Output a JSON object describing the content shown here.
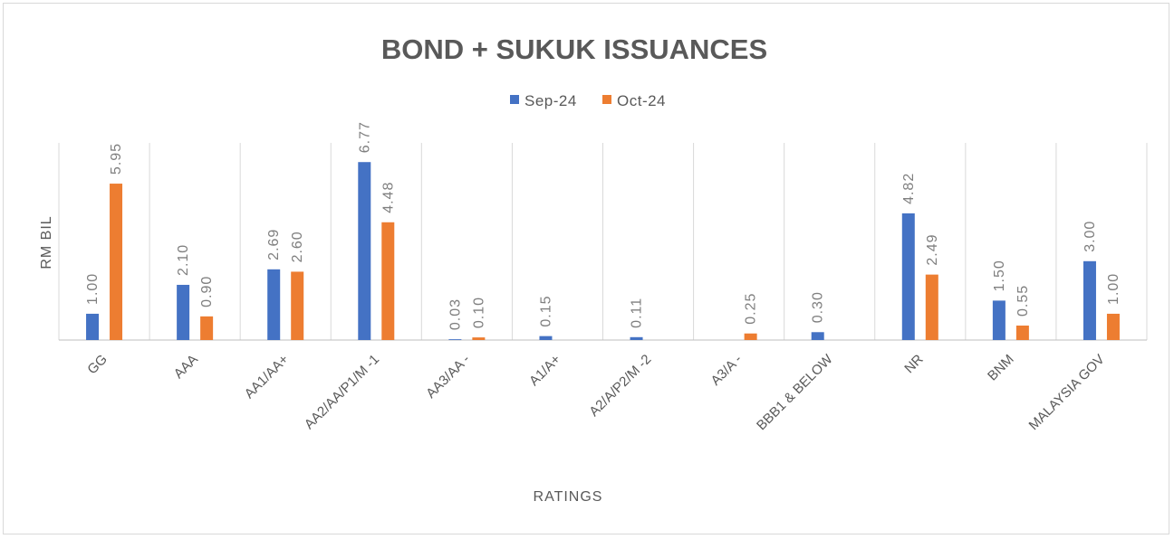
{
  "chart_data": {
    "type": "bar",
    "title": "BOND + SUKUK ISSUANCES",
    "xlabel": "RATINGS",
    "ylabel": "RM BIL",
    "categories": [
      "GG",
      "AAA",
      "AA1/AA+",
      "AA2/AA/P1/M -1",
      "AA3/AA -",
      "A1/A+",
      "A2/A/P2/M -2",
      "A3/A -",
      "BBB1 & BELOW",
      "NR",
      "BNM",
      "MALAYSIA GOV"
    ],
    "series": [
      {
        "name": "Sep-24",
        "color": "#4472c4",
        "values": [
          1.0,
          2.1,
          2.69,
          6.77,
          0.03,
          0.15,
          0.11,
          0,
          0.3,
          4.82,
          1.5,
          3.0
        ],
        "labels": [
          "1.00",
          "2.10",
          "2.69",
          "6.77",
          "0.03",
          "0.15",
          "0.11",
          "",
          "0.30",
          "4.82",
          "1.50",
          "3.00"
        ]
      },
      {
        "name": "Oct-24",
        "color": "#ed7d31",
        "values": [
          5.95,
          0.9,
          2.6,
          4.48,
          0.1,
          0,
          0,
          0.25,
          0,
          2.49,
          0.55,
          1.0
        ],
        "labels": [
          "5.95",
          "0.90",
          "2.60",
          "4.48",
          "0.10",
          "",
          "",
          "0.25",
          "",
          "2.49",
          "0.55",
          "1.00"
        ]
      }
    ],
    "ylim": [
      0,
      7.5
    ],
    "grid": "vertical",
    "legend": "top-center"
  }
}
